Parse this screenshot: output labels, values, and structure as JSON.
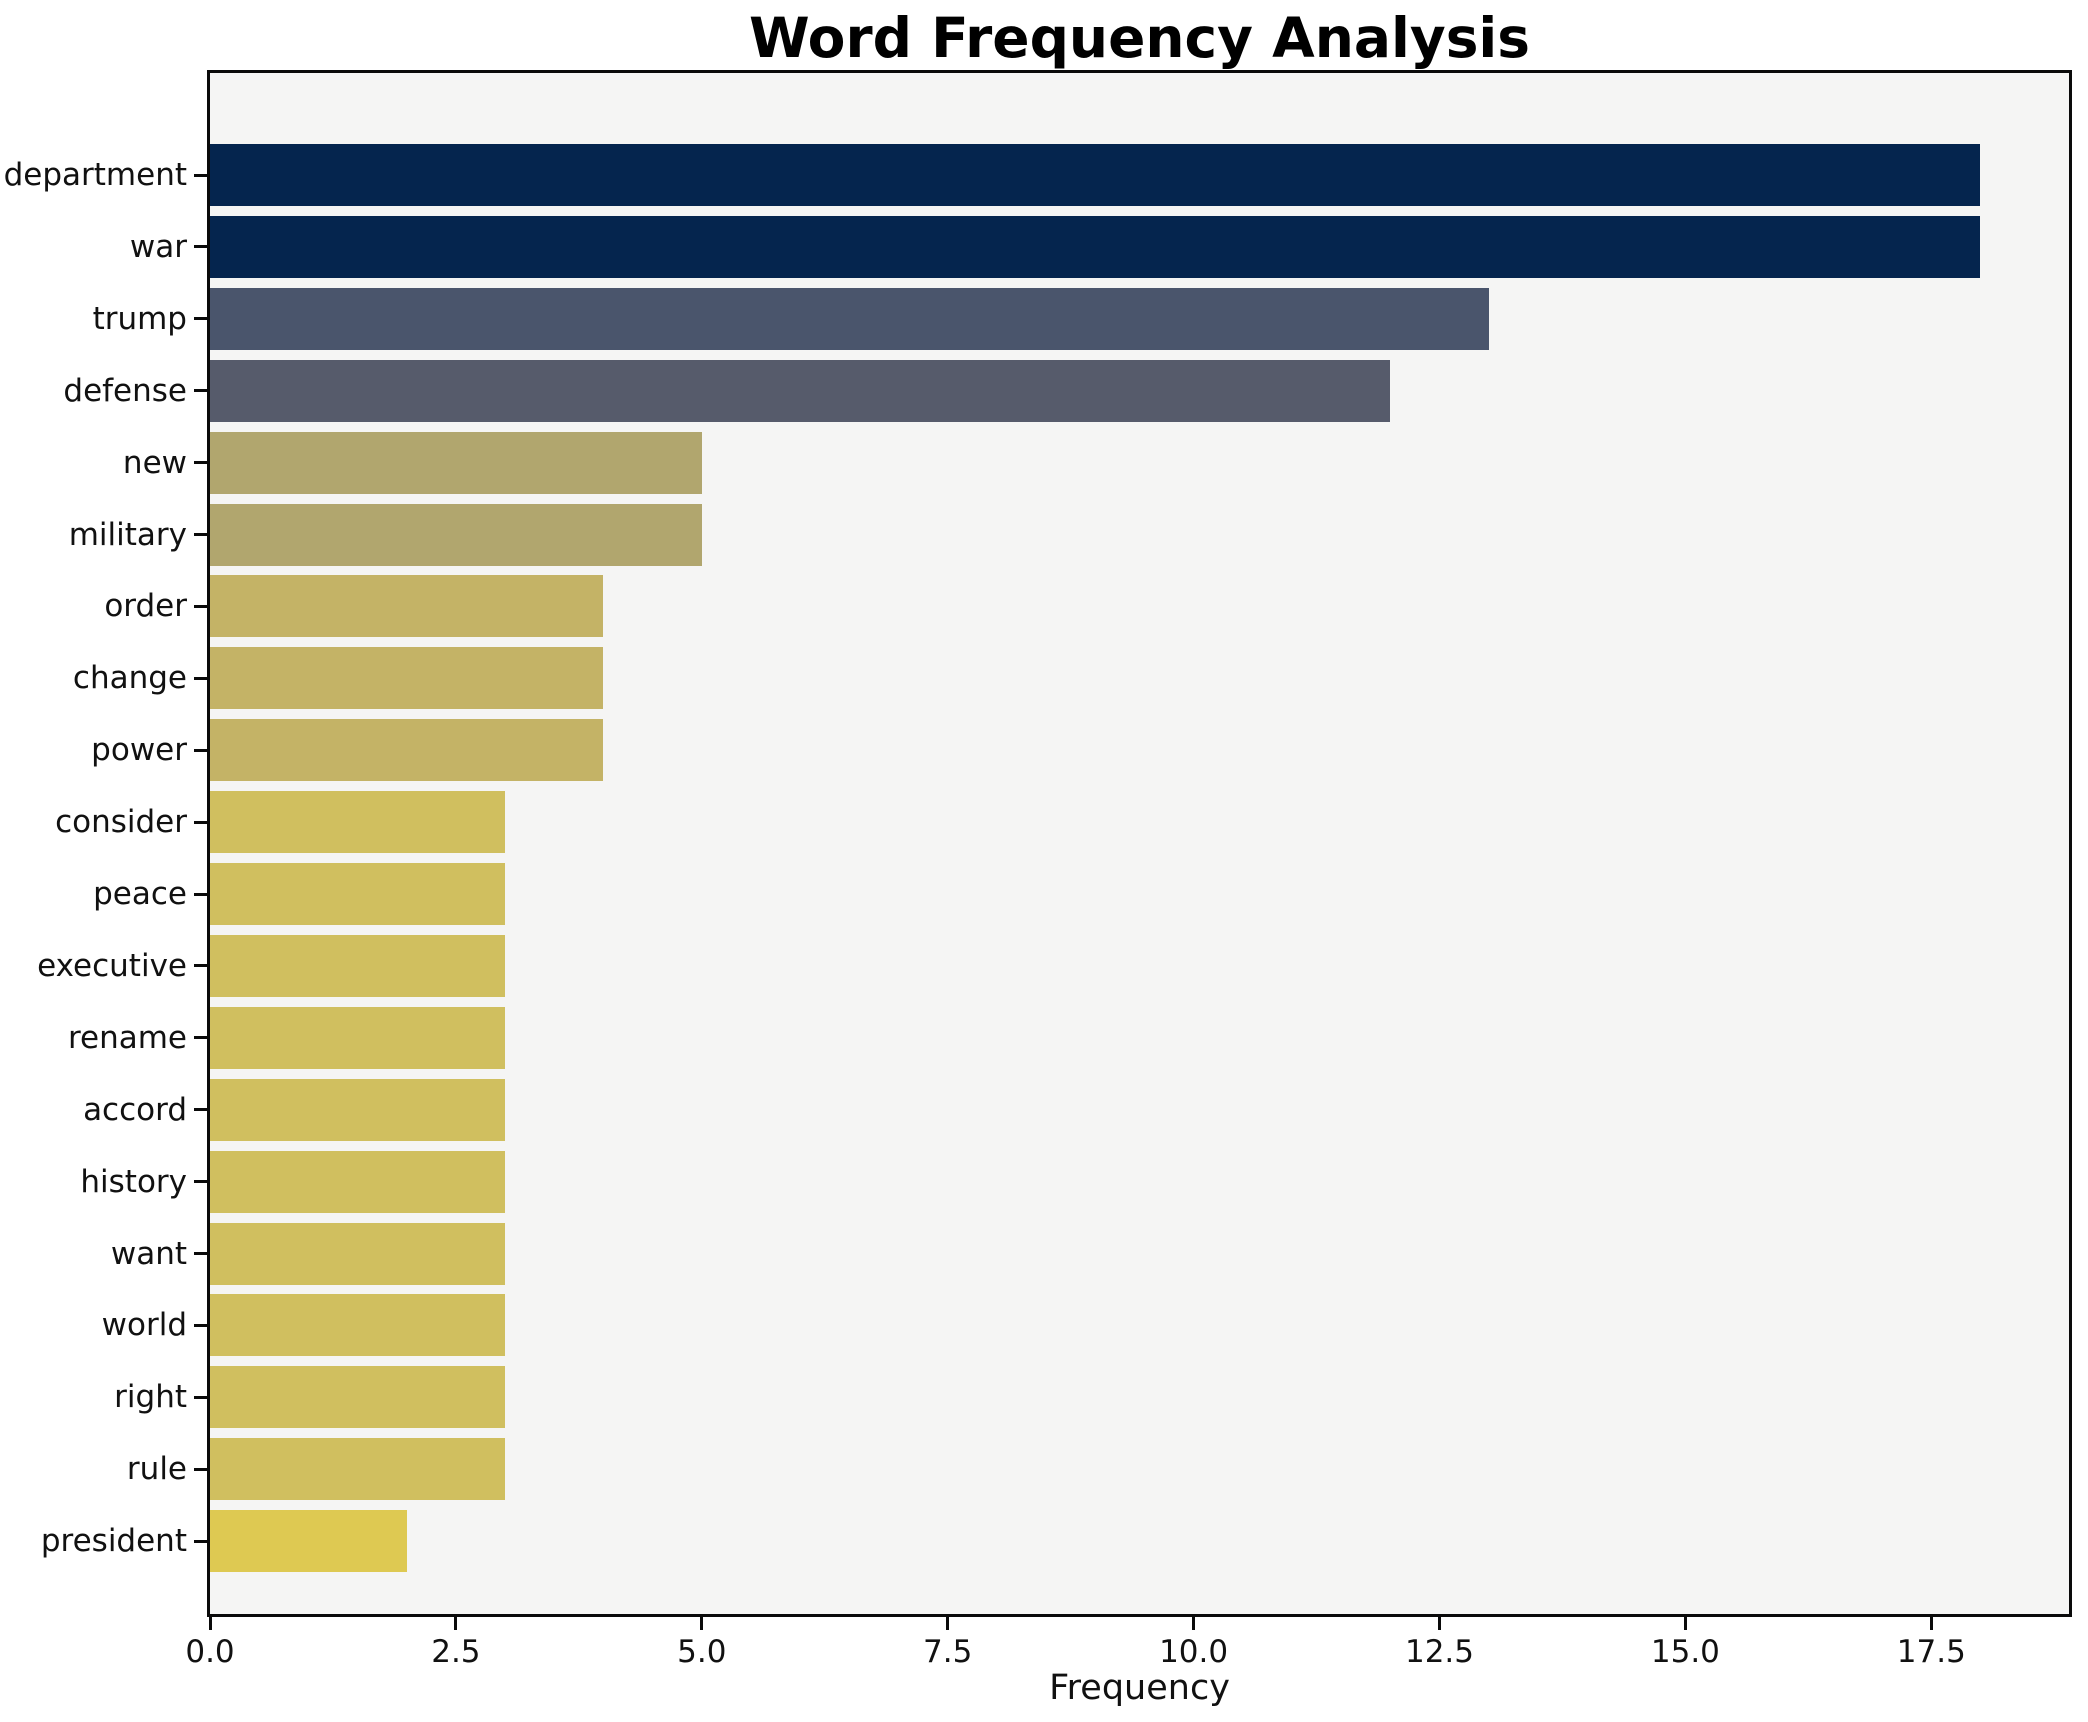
{
  "chart_data": {
    "type": "bar",
    "orientation": "horizontal",
    "title": "Word Frequency Analysis",
    "xlabel": "Frequency",
    "ylabel": "",
    "categories": [
      "department",
      "war",
      "trump",
      "defense",
      "new",
      "military",
      "order",
      "change",
      "power",
      "consider",
      "peace",
      "executive",
      "rename",
      "accord",
      "history",
      "want",
      "world",
      "right",
      "rule",
      "president"
    ],
    "values": [
      18,
      18,
      13,
      12,
      5,
      5,
      4,
      4,
      4,
      3,
      3,
      3,
      3,
      3,
      3,
      3,
      3,
      3,
      3,
      2
    ],
    "bar_colors": [
      "#05254e",
      "#05254e",
      "#4a556c",
      "#565b6b",
      "#b1a66e",
      "#b1a66e",
      "#c4b366",
      "#c4b366",
      "#c4b366",
      "#d0bf5f",
      "#d0bf5f",
      "#d0bf5f",
      "#d0bf5f",
      "#d0bf5f",
      "#d0bf5f",
      "#d0bf5f",
      "#d0bf5f",
      "#d0bf5f",
      "#d0bf5f",
      "#dec952"
    ],
    "xlim": [
      0,
      18.9
    ],
    "x_tick_labels": [
      "0.0",
      "2.5",
      "5.0",
      "7.5",
      "10.0",
      "12.5",
      "15.0",
      "17.5"
    ],
    "x_tick_values": [
      0,
      2.5,
      5,
      7.5,
      10,
      12.5,
      15,
      17.5
    ],
    "grid": false,
    "legend": "none",
    "plot_background": "#f5f5f4",
    "figure_background": "#ffffff",
    "spine_color": "#0a0a0a"
  }
}
